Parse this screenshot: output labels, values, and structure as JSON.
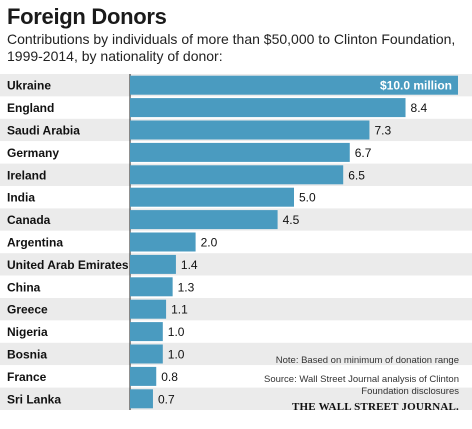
{
  "chart_data": {
    "type": "bar",
    "orientation": "horizontal",
    "title": "Foreign Donors",
    "subtitle": "Contributions by individuals of more than $50,000 to Clinton Foundation, 1999-2014, by nationality of donor:",
    "categories": [
      "Ukraine",
      "England",
      "Saudi Arabia",
      "Germany",
      "Ireland",
      "India",
      "Canada",
      "Argentina",
      "United Arab Emirates",
      "China",
      "Greece",
      "Nigeria",
      "Bosnia",
      "France",
      "Sri Lanka"
    ],
    "values": [
      10.0,
      8.4,
      7.3,
      6.7,
      6.5,
      5.0,
      4.5,
      2.0,
      1.4,
      1.3,
      1.1,
      1.0,
      1.0,
      0.8,
      0.7
    ],
    "value_labels": [
      "$10.0 million",
      "8.4",
      "7.3",
      "6.7",
      "6.5",
      "5.0",
      "4.5",
      "2.0",
      "1.4",
      "1.3",
      "1.1",
      "1.0",
      "1.0",
      "0.8",
      "0.7"
    ],
    "unit": "million dollars",
    "xlim": [
      0,
      10
    ],
    "grid": false,
    "colors": {
      "bar": "#4a9bc0",
      "row_even": "#ebebeb",
      "row_odd": "#ffffff",
      "divider": "#222222"
    }
  },
  "note": "Note: Based on minimum of donation range",
  "source": "Source: Wall Street Journal analysis of Clinton Foundation disclosures",
  "credit": "THE WALL STREET JOURNAL."
}
